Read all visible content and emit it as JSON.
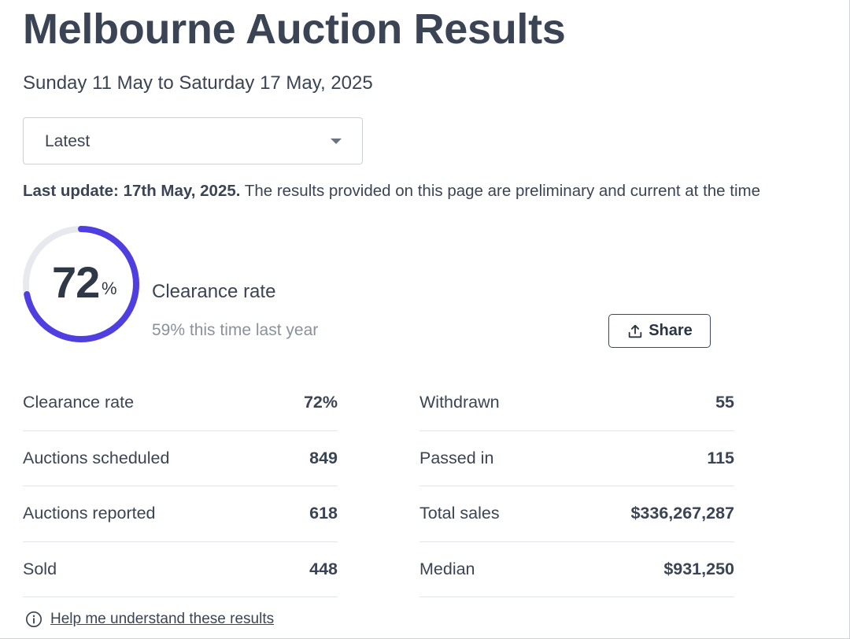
{
  "page": {
    "title": "Melbourne Auction Results",
    "date_range": "Sunday 11 May to Saturday 17 May, 2025"
  },
  "period_select": {
    "value": "Latest"
  },
  "notice": {
    "bold": "Last update: 17th May, 2025.",
    "text": " The results provided on this page are preliminary and current at the time"
  },
  "gauge": {
    "value": "72",
    "unit": "%",
    "fraction": 0.72,
    "label": "Clearance rate",
    "comparison": "59% this time last year",
    "accent_color": "#4f3fe0",
    "track_color": "#e7e9ee"
  },
  "share": {
    "label": "Share",
    "icon": "share-upload-icon"
  },
  "stats_left": [
    {
      "label": "Clearance rate",
      "value": "72%"
    },
    {
      "label": "Auctions scheduled",
      "value": "849"
    },
    {
      "label": "Auctions reported",
      "value": "618"
    },
    {
      "label": "Sold",
      "value": "448"
    }
  ],
  "stats_right": [
    {
      "label": "Withdrawn",
      "value": "55"
    },
    {
      "label": "Passed in",
      "value": "115"
    },
    {
      "label": "Total sales",
      "value": "$336,267,287"
    },
    {
      "label": "Median",
      "value": "$931,250"
    }
  ],
  "help": {
    "label": "Help me understand these results",
    "icon": "info-icon"
  }
}
